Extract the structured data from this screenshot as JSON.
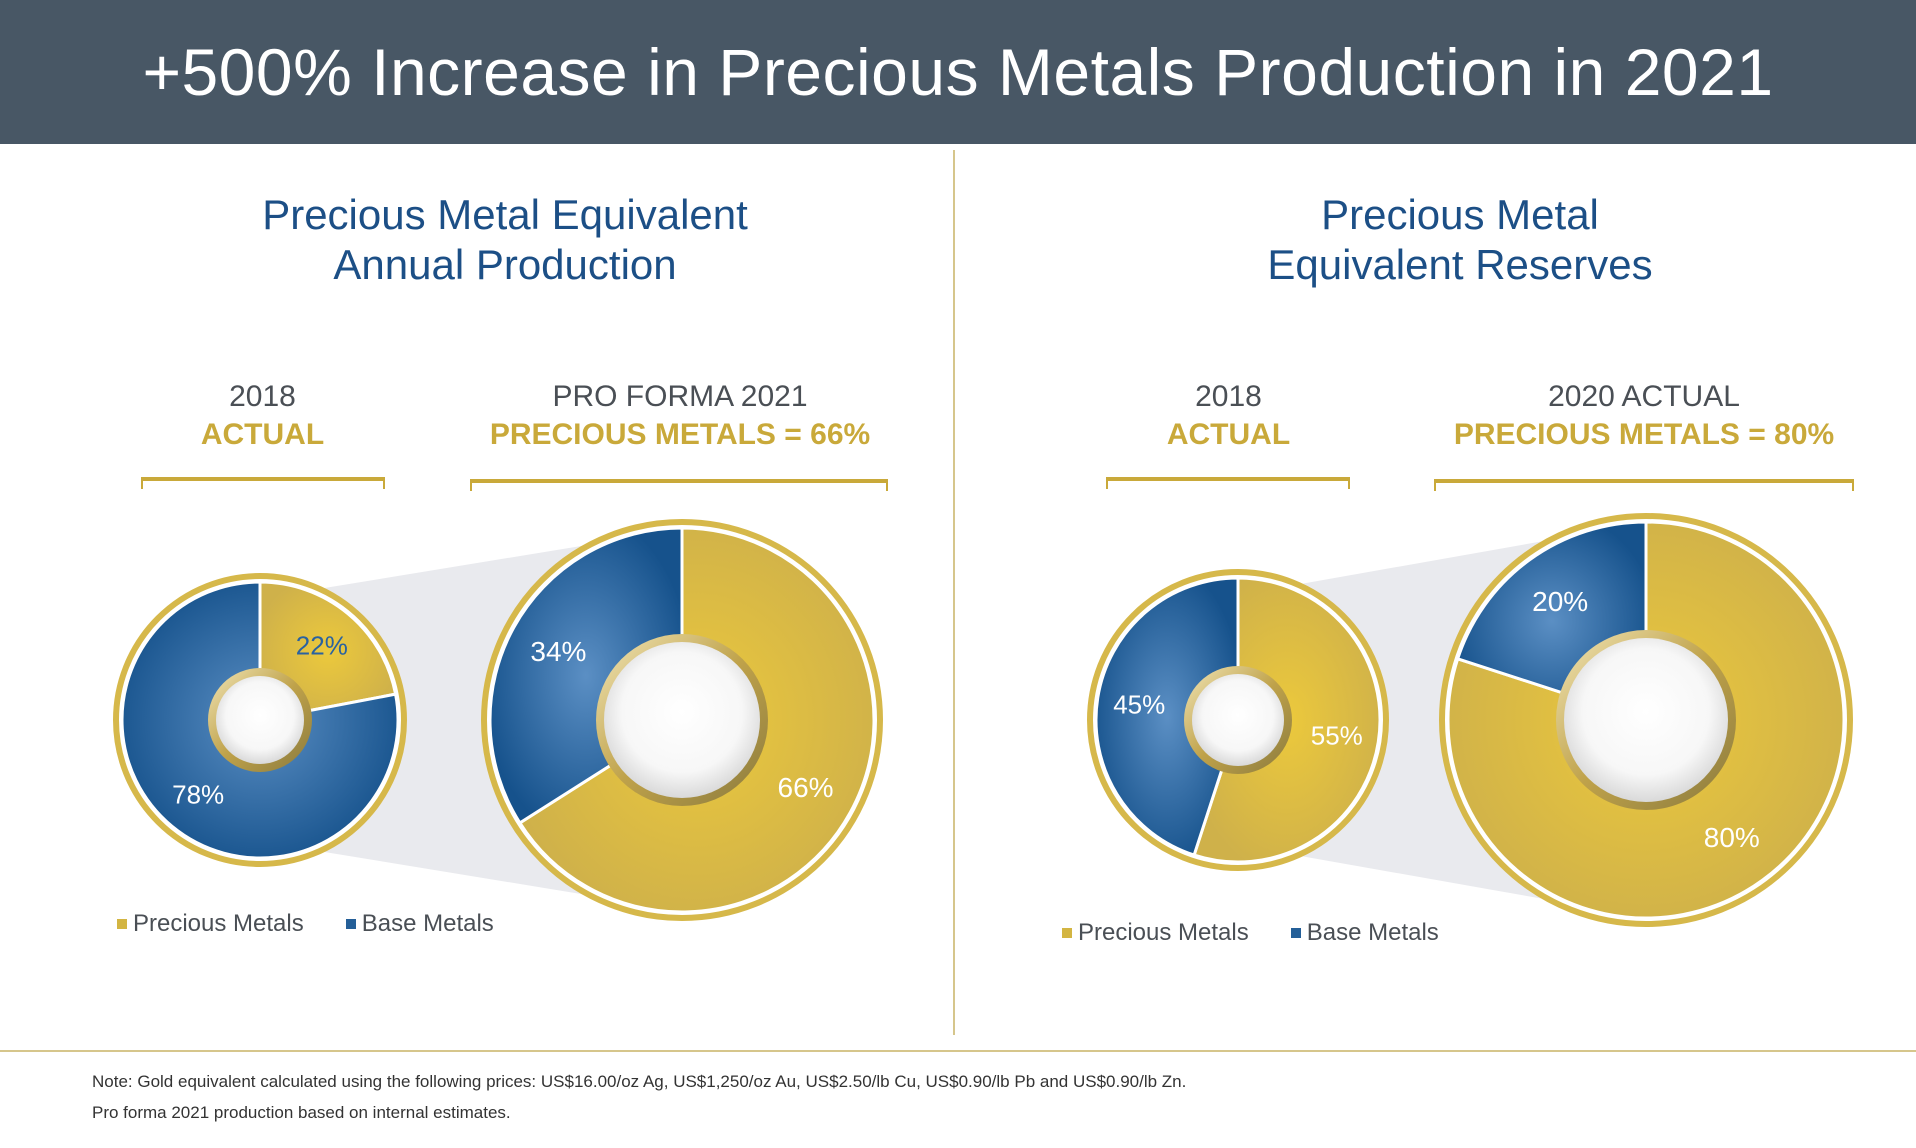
{
  "title": "+500% Increase in Precious Metals Production in 2021",
  "colors": {
    "precious": "#d3b542",
    "base": "#245f98",
    "header": "#485765",
    "accent": "#c9a93a",
    "title": "#1c4f86"
  },
  "left_panel": {
    "title_line1": "Precious Metal Equivalent",
    "title_line2": "Annual Production",
    "subtitle_a_line1": "2018",
    "subtitle_a_line2": "ACTUAL",
    "subtitle_b_line1": "PRO FORMA 2021",
    "subtitle_b_line2": "PRECIOUS METALS = 66%"
  },
  "right_panel": {
    "title_line1": "Precious Metal",
    "title_line2": "Equivalent Reserves",
    "subtitle_a_line1": "2018",
    "subtitle_a_line2": "ACTUAL",
    "subtitle_b_line1": "2020 ACTUAL",
    "subtitle_b_line2": "PRECIOUS METALS = 80%"
  },
  "legend": {
    "precious": "Precious Metals",
    "base": "Base Metals"
  },
  "notes": {
    "line1": "Note: Gold equivalent calculated using the following prices: US$16.00/oz Ag, US$1,250/oz Au, US$2.50/lb Cu, US$0.90/lb Pb and US$0.90/lb Zn.",
    "line2": "Pro forma 2021 production based on internal estimates."
  },
  "chart_data": [
    {
      "type": "pie",
      "categories": [
        "Precious Metals",
        "Base Metals"
      ],
      "values": [
        22,
        78
      ],
      "labels": [
        "22%",
        "78%"
      ]
    },
    {
      "type": "pie",
      "categories": [
        "Precious Metals",
        "Base Metals"
      ],
      "values": [
        66,
        34
      ],
      "labels": [
        "66%",
        "34%"
      ]
    },
    {
      "type": "pie",
      "categories": [
        "Precious Metals",
        "Base Metals"
      ],
      "values": [
        55,
        45
      ],
      "labels": [
        "55%",
        "45%"
      ]
    },
    {
      "type": "pie",
      "categories": [
        "Precious Metals",
        "Base Metals"
      ],
      "values": [
        80,
        20
      ],
      "labels": [
        "80%",
        "20%"
      ]
    }
  ]
}
